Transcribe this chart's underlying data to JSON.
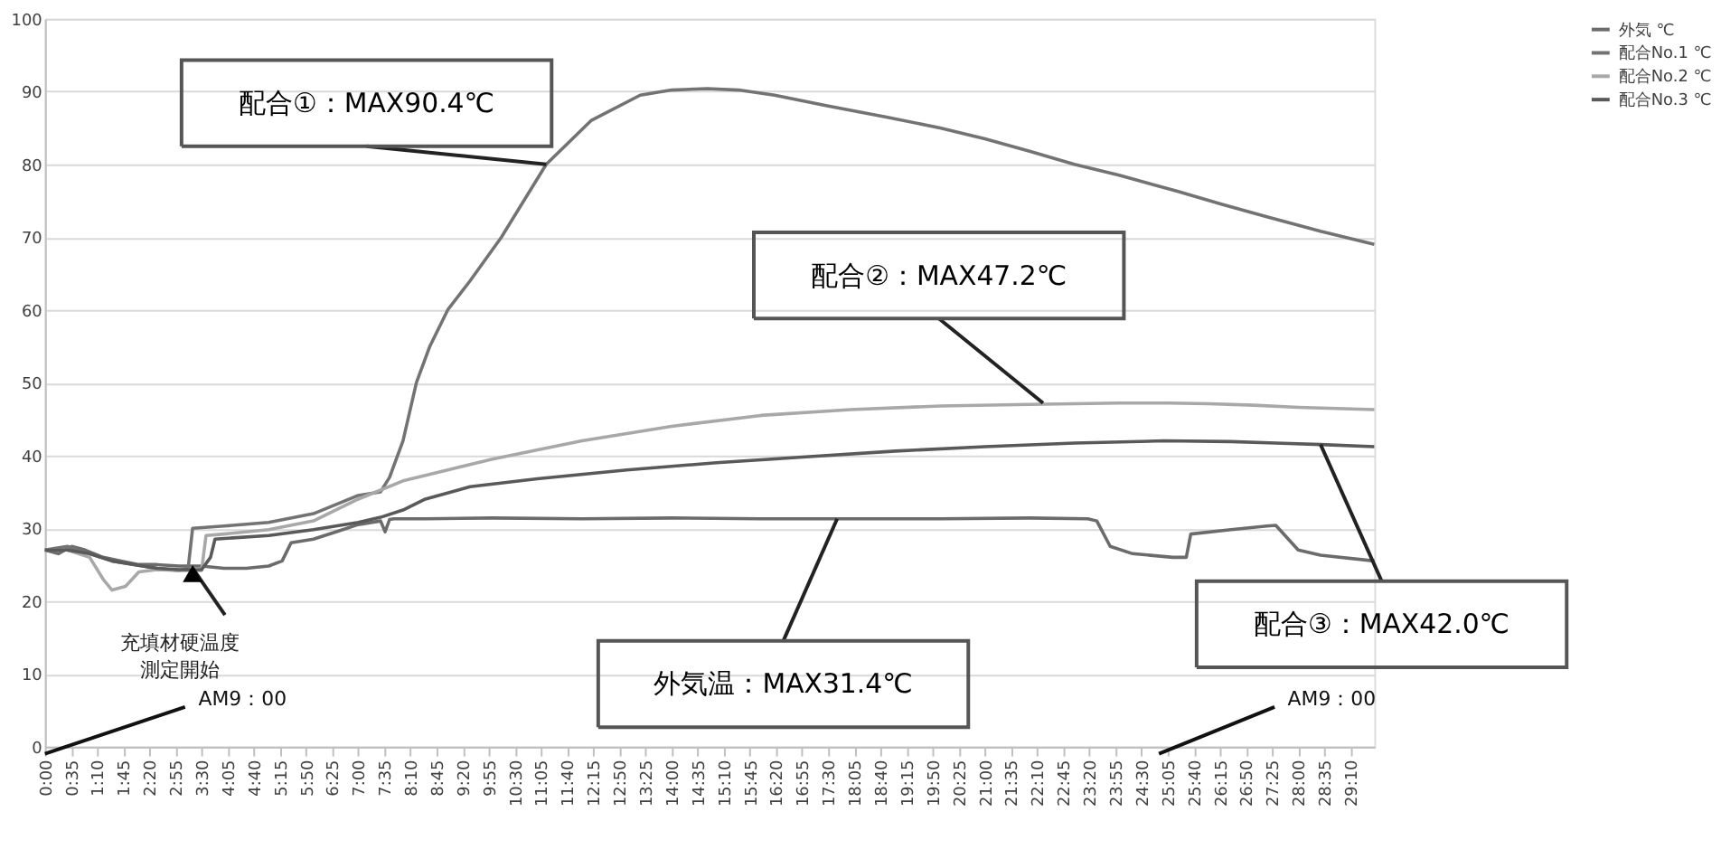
{
  "chart_data": {
    "type": "line",
    "xlim": [
      0,
      29.7
    ],
    "ylim": [
      0,
      100
    ],
    "yticks": [
      0,
      10,
      20,
      30,
      40,
      50,
      60,
      70,
      80,
      90,
      100
    ],
    "xticks": [
      {
        "value": 0,
        "label": "0:00"
      },
      {
        "value": 0.5833,
        "label": "0:35"
      },
      {
        "value": 1.1667,
        "label": "1:10"
      },
      {
        "value": 1.75,
        "label": "1:45"
      },
      {
        "value": 2.3333,
        "label": "2:20"
      },
      {
        "value": 2.9167,
        "label": "2:55"
      },
      {
        "value": 3.5,
        "label": "3:30"
      },
      {
        "value": 4.0833,
        "label": "4:05"
      },
      {
        "value": 4.6667,
        "label": "4:40"
      },
      {
        "value": 5.25,
        "label": "5:15"
      },
      {
        "value": 5.8333,
        "label": "5:50"
      },
      {
        "value": 6.4167,
        "label": "6:25"
      },
      {
        "value": 7,
        "label": "7:00"
      },
      {
        "value": 7.5833,
        "label": "7:35"
      },
      {
        "value": 8.1667,
        "label": "8:10"
      },
      {
        "value": 8.75,
        "label": "8:45"
      },
      {
        "value": 9.3333,
        "label": "9:20"
      },
      {
        "value": 9.9167,
        "label": "9:55"
      },
      {
        "value": 10.5,
        "label": "10:30"
      },
      {
        "value": 11.0833,
        "label": "11:05"
      },
      {
        "value": 11.6667,
        "label": "11:40"
      },
      {
        "value": 12.25,
        "label": "12:15"
      },
      {
        "value": 12.8333,
        "label": "12:50"
      },
      {
        "value": 13.4167,
        "label": "13:25"
      },
      {
        "value": 14,
        "label": "14:00"
      },
      {
        "value": 14.5833,
        "label": "14:35"
      },
      {
        "value": 15.1667,
        "label": "15:10"
      },
      {
        "value": 15.75,
        "label": "15:45"
      },
      {
        "value": 16.3333,
        "label": "16:20"
      },
      {
        "value": 16.9167,
        "label": "16:55"
      },
      {
        "value": 17.5,
        "label": "17:30"
      },
      {
        "value": 18.0833,
        "label": "18:05"
      },
      {
        "value": 18.6667,
        "label": "18:40"
      },
      {
        "value": 19.25,
        "label": "19:15"
      },
      {
        "value": 19.8333,
        "label": "19:50"
      },
      {
        "value": 20.4167,
        "label": "20:25"
      },
      {
        "value": 21,
        "label": "21:00"
      },
      {
        "value": 21.5833,
        "label": "21:35"
      },
      {
        "value": 22.1667,
        "label": "22:10"
      },
      {
        "value": 22.75,
        "label": "22:45"
      },
      {
        "value": 23.3333,
        "label": "23:20"
      },
      {
        "value": 23.9167,
        "label": "23:55"
      },
      {
        "value": 24.5,
        "label": "24:30"
      },
      {
        "value": 25.0833,
        "label": "25:05"
      },
      {
        "value": 25.6667,
        "label": "25:40"
      },
      {
        "value": 26.25,
        "label": "26:15"
      },
      {
        "value": 26.8333,
        "label": "26:50"
      },
      {
        "value": 27.4167,
        "label": "27:25"
      },
      {
        "value": 28,
        "label": "28:00"
      },
      {
        "value": 28.5833,
        "label": "28:35"
      },
      {
        "value": 29.1667,
        "label": "29:10"
      }
    ],
    "grid": "y",
    "legend": "right",
    "series": [
      {
        "name": "外気 ℃",
        "color": "#6b6b6b",
        "x": [
          0,
          0.3,
          0.6,
          0.9,
          1.3,
          1.7,
          2.1,
          2.5,
          3.0,
          3.5,
          4.0,
          4.5,
          5.0,
          5.3,
          5.5,
          6.0,
          6.5,
          7.0,
          7.5,
          7.6,
          7.7,
          7.8,
          8.5,
          10,
          12,
          14,
          16,
          18,
          20,
          22,
          23.3,
          23.5,
          23.8,
          24.3,
          25.2,
          25.5,
          25.6,
          26.5,
          27.3,
          27.5,
          28,
          28.5,
          29.7
        ],
        "values": [
          27,
          26.5,
          27.5,
          27,
          26,
          25.5,
          25,
          25,
          24.8,
          24.8,
          24.5,
          24.5,
          24.8,
          25.5,
          28,
          28.5,
          29.5,
          30.5,
          31,
          29.5,
          31.2,
          31.3,
          31.3,
          31.4,
          31.3,
          31.4,
          31.3,
          31.3,
          31.3,
          31.4,
          31.3,
          31,
          27.5,
          26.5,
          26,
          26,
          29.2,
          29.8,
          30.3,
          30.4,
          27,
          26.3,
          25.5
        ]
      },
      {
        "name": "配合No.1 ℃",
        "color": "#737373",
        "x": [
          0,
          0.5,
          1,
          1.5,
          2,
          2.5,
          3.0,
          3.2,
          3.3,
          4,
          5,
          6,
          7,
          7.5,
          7.7,
          8.0,
          8.3,
          8.6,
          9.0,
          9.5,
          10.2,
          11.2,
          12.2,
          13.3,
          14,
          14.8,
          15.5,
          16.3,
          17.5,
          18.8,
          20,
          21,
          22,
          23,
          24,
          25.3,
          26.3,
          27.3,
          28.5,
          29.7
        ],
        "values": [
          27,
          27.5,
          26.5,
          25.5,
          25,
          24.5,
          24.2,
          24.5,
          30,
          30.3,
          30.8,
          32,
          34.5,
          35,
          37,
          42,
          50,
          55,
          60,
          64,
          70,
          80,
          86,
          89.5,
          90.2,
          90.4,
          90.2,
          89.5,
          88,
          86.5,
          85,
          83.5,
          81.8,
          80,
          78.5,
          76.3,
          74.5,
          72.8,
          70.8,
          69
        ]
      },
      {
        "name": "配合No.2 ℃",
        "color": "#a8a8a8",
        "x": [
          0,
          0.5,
          1.0,
          1.3,
          1.5,
          1.8,
          2.1,
          2.5,
          3,
          3.5,
          3.6,
          4,
          5,
          6,
          7,
          8,
          9,
          10,
          12,
          14,
          16,
          18,
          20,
          22,
          24,
          25.1,
          26,
          27,
          28,
          29.7
        ],
        "values": [
          27,
          27,
          26,
          23,
          21.5,
          22,
          24,
          24.3,
          24.2,
          24.2,
          29,
          29.2,
          29.8,
          31,
          34,
          36.5,
          38,
          39.5,
          42,
          44,
          45.5,
          46.3,
          46.8,
          47,
          47.2,
          47.2,
          47.1,
          46.9,
          46.6,
          46.3
        ]
      },
      {
        "name": "配合No.3 ℃",
        "color": "#595959",
        "x": [
          0,
          0.5,
          1,
          1.5,
          2,
          2.5,
          3,
          3.5,
          3.7,
          3.8,
          5,
          6,
          7,
          7.5,
          8,
          8.5,
          9.5,
          11,
          13,
          15,
          17,
          19,
          21,
          23,
          25,
          26.5,
          27.5,
          28.5,
          29.7
        ],
        "values": [
          27,
          27,
          26.5,
          25.5,
          25,
          24.5,
          24.3,
          24.3,
          26,
          28.5,
          29,
          29.8,
          30.8,
          31.5,
          32.5,
          34,
          35.7,
          36.8,
          38,
          39,
          39.8,
          40.6,
          41.2,
          41.7,
          42,
          41.9,
          41.7,
          41.5,
          41.2
        ]
      }
    ],
    "annotations": [
      {
        "text": "配合①：MAX90.4℃",
        "x": 11.2,
        "y": 80
      },
      {
        "text": "配合②：MAX47.2℃",
        "x": 22.3,
        "y": 47.2
      },
      {
        "text": "配合③：MAX42.0℃",
        "x": 28.5,
        "y": 41.5
      },
      {
        "text": "外気温：MAX31.4℃",
        "x": 17.7,
        "y": 31.3
      },
      {
        "text": "充填材硬温度測定開始",
        "x": 3.3,
        "y": 24.5
      },
      "AM9：00",
      "AM9：00"
    ]
  }
}
